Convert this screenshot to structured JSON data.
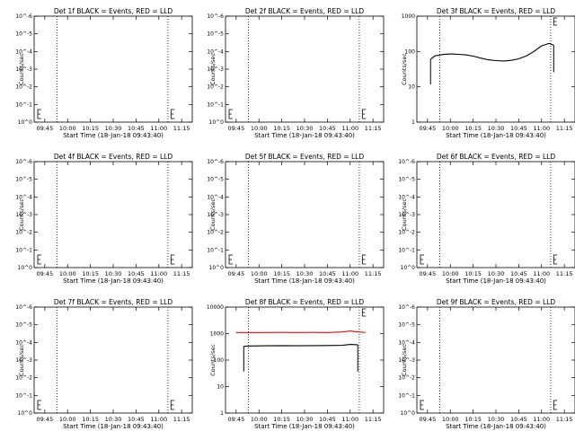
{
  "chart_data": [
    {
      "type": "line",
      "title": "Det 1f BLACK = Events, RED = LLD",
      "xlabel": "Start Time (18-Jan-18 09:43:40)",
      "ylabel": "Counts/sec",
      "x_ticks": [
        "09:45",
        "10:00",
        "10:15",
        "10:30",
        "10:45",
        "11:00",
        "11:15"
      ],
      "y_ticks": [
        "10^0",
        "10^-1",
        "10^-2",
        "10^-3",
        "10^-4",
        "10^-5",
        "10^-6"
      ],
      "y_scale": "log",
      "series": []
    },
    {
      "type": "line",
      "title": "Det 2f BLACK = Events, RED = LLD",
      "xlabel": "Start Time (18-Jan-18 09:43:40)",
      "ylabel": "Counts/sec",
      "x_ticks": [
        "09:45",
        "10:00",
        "10:15",
        "10:30",
        "10:45",
        "11:00",
        "11:15"
      ],
      "y_ticks": [
        "10^0",
        "10^-1",
        "10^-2",
        "10^-3",
        "10^-4",
        "10^-5",
        "10^-6"
      ],
      "y_scale": "log",
      "series": []
    },
    {
      "type": "line",
      "title": "Det 3f BLACK = Events, RED = LLD",
      "xlabel": "Start Time (18-Jan-18 09:43:40)",
      "ylabel": "Counts/sec",
      "x_ticks": [
        "09:45",
        "10:00",
        "10:15",
        "10:30",
        "10:45",
        "11:00",
        "11:15"
      ],
      "y_ticks": [
        "1",
        "10",
        "100",
        "1000"
      ],
      "y_scale": "log",
      "series": [
        {
          "color": "#000000",
          "x": [
            "09:47",
            "09:50",
            "09:55",
            "10:00",
            "10:05",
            "10:10",
            "10:15",
            "10:20",
            "10:25",
            "10:30",
            "10:35",
            "10:40",
            "10:45",
            "10:50",
            "10:55",
            "11:00",
            "11:05",
            "11:08"
          ],
          "y": [
            60,
            75,
            82,
            85,
            83,
            80,
            74,
            65,
            58,
            55,
            54,
            56,
            62,
            75,
            100,
            145,
            170,
            150
          ]
        }
      ]
    },
    {
      "type": "line",
      "title": "Det 4f BLACK = Events, RED = LLD",
      "xlabel": "Start Time (18-Jan-18 09:43:40)",
      "ylabel": "Counts/sec",
      "x_ticks": [
        "09:45",
        "10:00",
        "10:15",
        "10:30",
        "10:45",
        "11:00",
        "11:15"
      ],
      "y_ticks": [
        "10^0",
        "10^-1",
        "10^-2",
        "10^-3",
        "10^-4",
        "10^-5",
        "10^-6"
      ],
      "y_scale": "log",
      "series": []
    },
    {
      "type": "line",
      "title": "Det 5f BLACK = Events, RED = LLD",
      "xlabel": "Start Time (18-Jan-18 09:43:40)",
      "ylabel": "Counts/sec",
      "x_ticks": [
        "09:45",
        "10:00",
        "10:15",
        "10:30",
        "10:45",
        "11:00",
        "11:15"
      ],
      "y_ticks": [
        "10^0",
        "10^-1",
        "10^-2",
        "10^-3",
        "10^-4",
        "10^-5",
        "10^-6"
      ],
      "y_scale": "log",
      "series": []
    },
    {
      "type": "line",
      "title": "Det 6f BLACK = Events, RED = LLD",
      "xlabel": "Start Time (18-Jan-18 09:43:40)",
      "ylabel": "Counts/sec",
      "x_ticks": [
        "09:45",
        "10:00",
        "10:15",
        "10:30",
        "10:45",
        "11:00",
        "11:15"
      ],
      "y_ticks": [
        "10^0",
        "10^-1",
        "10^-2",
        "10^-3",
        "10^-4",
        "10^-5",
        "10^-6"
      ],
      "y_scale": "log",
      "series": []
    },
    {
      "type": "line",
      "title": "Det 7f BLACK = Events, RED = LLD",
      "xlabel": "Start Time (18-Jan-18 09:43:40)",
      "ylabel": "Counts/sec",
      "x_ticks": [
        "09:45",
        "10:00",
        "10:15",
        "10:30",
        "10:45",
        "11:00",
        "11:15"
      ],
      "y_ticks": [
        "10^0",
        "10^-1",
        "10^-2",
        "10^-3",
        "10^-4",
        "10^-5",
        "10^-6"
      ],
      "y_scale": "log",
      "series": []
    },
    {
      "type": "line",
      "title": "Det 8f BLACK = Events, RED = LLD",
      "xlabel": "Start Time (18-Jan-18 09:43:40)",
      "ylabel": "Counts/sec",
      "x_ticks": [
        "09:45",
        "10:00",
        "10:15",
        "10:30",
        "10:45",
        "11:00",
        "11:15"
      ],
      "y_ticks": [
        "1",
        "10",
        "100",
        "1000",
        "10000"
      ],
      "y_scale": "log",
      "series": [
        {
          "color": "#ff0000",
          "x": [
            "09:45",
            "09:55",
            "10:05",
            "10:15",
            "10:25",
            "10:35",
            "10:45",
            "10:55",
            "11:00",
            "11:05",
            "11:10"
          ],
          "y": [
            1100,
            1100,
            1100,
            1110,
            1100,
            1110,
            1100,
            1150,
            1250,
            1150,
            1100
          ]
        },
        {
          "color": "#000000",
          "x": [
            "09:50",
            "09:55",
            "10:05",
            "10:15",
            "10:25",
            "10:35",
            "10:45",
            "10:55",
            "11:00",
            "11:05"
          ],
          "y": [
            330,
            340,
            345,
            350,
            345,
            350,
            355,
            360,
            390,
            380
          ]
        }
      ]
    },
    {
      "type": "line",
      "title": "Det 9f BLACK = Events, RED = LLD",
      "xlabel": "Start Time (18-Jan-18 09:43:40)",
      "ylabel": "Counts/sec",
      "x_ticks": [
        "09:45",
        "10:00",
        "10:15",
        "10:30",
        "10:45",
        "11:00",
        "11:15"
      ],
      "y_ticks": [
        "10^0",
        "10^-1",
        "10^-2",
        "10^-3",
        "10^-4",
        "10^-5",
        "10^-6"
      ],
      "y_scale": "log",
      "series": []
    }
  ]
}
